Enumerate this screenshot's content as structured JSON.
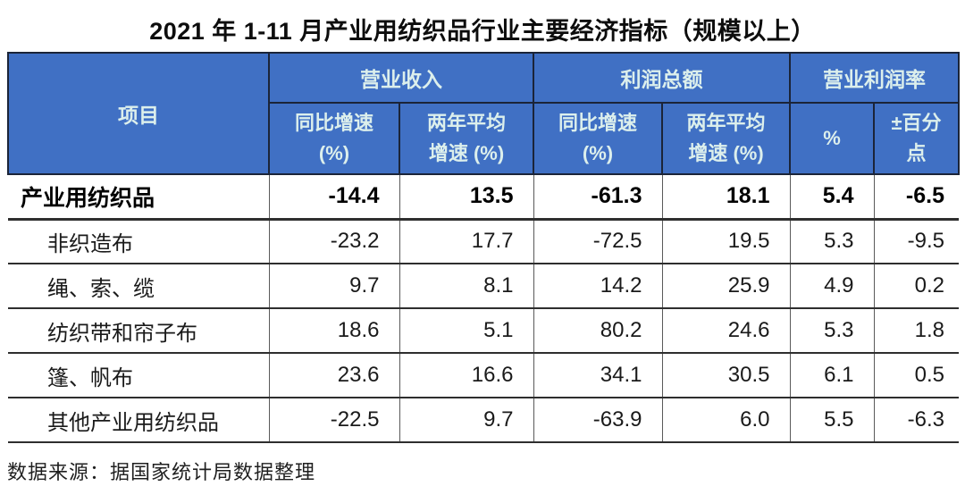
{
  "title": "2021 年 1-11 月产业用纺织品行业主要经济指标（规模以上）",
  "table": {
    "item_header": "项目",
    "groups": [
      {
        "label": "营业收入"
      },
      {
        "label": "利润总额"
      },
      {
        "label": "营业利润率"
      }
    ],
    "subheaders": [
      "同比增速\n(%)",
      "两年平均\n增速 (%)",
      "同比增速\n(%)",
      "两年平均\n增速 (%)",
      "%",
      "±百分\n点"
    ],
    "rows": [
      {
        "label": "产业用纺织品",
        "bold": true,
        "indent": false,
        "values": [
          "-14.4",
          "13.5",
          "-61.3",
          "18.1",
          "5.4",
          "-6.5"
        ]
      },
      {
        "label": "非织造布",
        "bold": false,
        "indent": true,
        "values": [
          "-23.2",
          "17.7",
          "-72.5",
          "19.5",
          "5.3",
          "-9.5"
        ]
      },
      {
        "label": "绳、索、缆",
        "bold": false,
        "indent": true,
        "values": [
          "9.7",
          "8.1",
          "14.2",
          "25.9",
          "4.9",
          "0.2"
        ]
      },
      {
        "label": "纺织带和帘子布",
        "bold": false,
        "indent": true,
        "values": [
          "18.6",
          "5.1",
          "80.2",
          "24.6",
          "5.3",
          "1.8"
        ]
      },
      {
        "label": "篷、帆布",
        "bold": false,
        "indent": true,
        "values": [
          "23.6",
          "16.6",
          "34.1",
          "30.5",
          "6.1",
          "0.5"
        ]
      },
      {
        "label": "其他产业用纺织品",
        "bold": false,
        "indent": true,
        "values": [
          "-22.5",
          "9.7",
          "-63.9",
          "6.0",
          "5.5",
          "-6.3"
        ]
      }
    ],
    "source": "数据来源：据国家统计局数据整理"
  },
  "colors": {
    "header_bg": "#4070C4",
    "header_text": "#DCEFEC",
    "header_border": "#1B2438"
  },
  "chart_data": {
    "type": "table",
    "title": "2021 年 1-11 月产业用纺织品行业主要经济指标（规模以上）",
    "columns": [
      "项目",
      "营业收入 同比增速 (%)",
      "营业收入 两年平均增速 (%)",
      "利润总额 同比增速 (%)",
      "利润总额 两年平均增速 (%)",
      "营业利润率 %",
      "营业利润率 ±百分点"
    ],
    "rows": [
      [
        "产业用纺织品",
        -14.4,
        13.5,
        -61.3,
        18.1,
        5.4,
        -6.5
      ],
      [
        "非织造布",
        -23.2,
        17.7,
        -72.5,
        19.5,
        5.3,
        -9.5
      ],
      [
        "绳、索、缆",
        9.7,
        8.1,
        14.2,
        25.9,
        4.9,
        0.2
      ],
      [
        "纺织带和帘子布",
        18.6,
        5.1,
        80.2,
        24.6,
        5.3,
        1.8
      ],
      [
        "篷、帆布",
        23.6,
        16.6,
        34.1,
        30.5,
        6.1,
        0.5
      ],
      [
        "其他产业用纺织品",
        -22.5,
        9.7,
        -63.9,
        6.0,
        5.5,
        -6.3
      ]
    ],
    "source": "数据来源：据国家统计局数据整理"
  }
}
